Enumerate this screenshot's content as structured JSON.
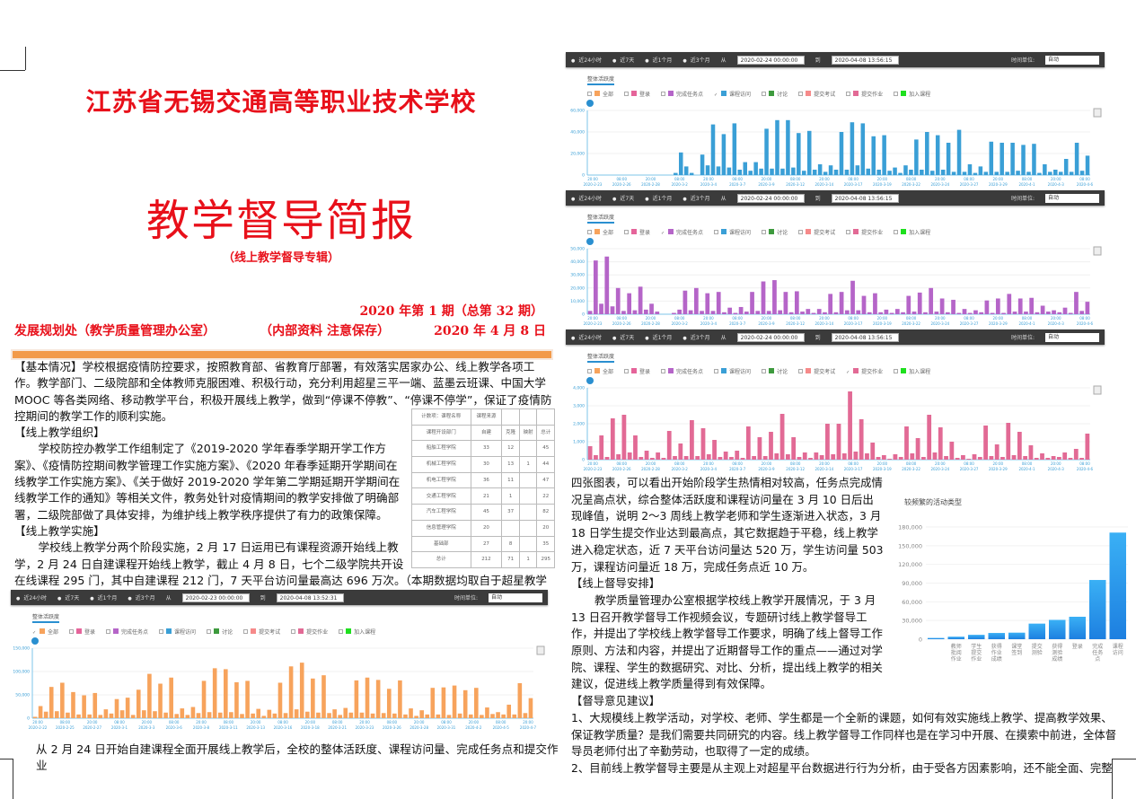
{
  "header": {
    "school": "江苏省无锡交通高等职业技术学校",
    "title": "教学督导简报",
    "subtitle": "（线上教学督导专辑）",
    "issue": "2020 年第 1 期（总第 32 期）",
    "dept": "发展规划处（教学质量管理办公室）",
    "confidential": "（内部资料  注意保存）",
    "date": "2020 年 4 月 8 日"
  },
  "left": {
    "p1": "【基本情况】学校根据疫情防控要求，按照教育部、省教育厅部署，有效落实居家办公、线上教学各项工作。教学部门、二级院部和全体教师克服困难、积极行动，充分利用超星三平一端、蓝墨云班课、中国大学 MOOC 等各类网络、移动教学平台，积极开展线上教学，做到“停课不停教”、“停课不停学”，保证了疫情防控期间的教学工作的顺利实施。",
    "h2": "【线上教学组织】",
    "p2": "学校防控办教学工作组制定了《2019-2020 学年春季学期开学工作方案》、《疫情防控期间教学管理工作实施方案》、《2020 年春季延期开学期间在线教学工作实施方案》、《关于做好 2019-2020 学年第二学期延期开学期间在线教学工作的通知》等相关文件，教务处针对疫情期间的教学安排做了明确部署，二级院部做了具体安排，为维护线上教学秩序提供了有力的政策保障。",
    "h3": "【线上教学实施】",
    "p3": "学校线上教学分两个阶段实施，2 月 17 日运用已有课程资源开始线上教学，2 月 24 日自建课程开始线上教学，截止 4 月 8 日，七个二级学院共开设在线课程 295 门，其中自建课程 212 门，7 天平台访问量最高达 696 万次。（本期数据均取自于超星教学平台课程）",
    "bottom": "从 2 月 24 日开始自建课程全面开展线上教学后，全校的整体活跃度、课程访问量、完成任务点和提交作业"
  },
  "table": {
    "top": [
      "计数项：课程名称",
      "课程来源",
      "",
      "",
      ""
    ],
    "header": [
      "课程开设部门",
      "自建",
      "克隆",
      "映射",
      "总计"
    ],
    "rows": [
      [
        "船舶工程学院",
        "33",
        "12",
        "",
        "45"
      ],
      [
        "机械工程学院",
        "30",
        "13",
        "1",
        "44"
      ],
      [
        "机电工程学院",
        "36",
        "11",
        "",
        "47"
      ],
      [
        "交通工程学院",
        "21",
        "1",
        "",
        "22"
      ],
      [
        "汽车工程学院",
        "45",
        "37",
        "",
        "82"
      ],
      [
        "信息管理学院",
        "20",
        "",
        "",
        "20"
      ],
      [
        "基础部",
        "27",
        "8",
        "",
        "35"
      ],
      [
        "总计",
        "212",
        "71",
        "1",
        "295"
      ]
    ]
  },
  "right": {
    "p1": "四张图表，可以看出开始阶段学生热情相对较高，任务点完成情况呈高点状，综合整体活跃度和课程访问量在 3 月 10 日后出现峰值，说明 2～3 周线上教学老师和学生逐渐进入状态，3 月 18 日学生提交作业达到最高点，其它数据趋于平稳，线上教学进入稳定状态，近 7 天平台访问量达 520 万，学生访问量 503 万，课程访问量近 18 万，完成任务点近 10 万。",
    "h2": "【线上督导安排】",
    "p2": "教学质量管理办公室根据学校线上教学开展情况，于 3 月 13 日召开教学督导工作视频会议，专题研讨线上教学督导工作，并提出了学校线上教学督导工作要求，明确了线上督导工作原则、方法和内容，并提出了近期督导工作的重点——通过对学院、课程、学生的数据研究、对比、分析，提出线上教学的相关建议，促进线上教学质量得到有效保障。",
    "h3": "【督导意见建议】",
    "p3": "1、大规模线上教学活动，对学校、老师、学生都是一个全新的课题，如何有效实施线上教学、提高教学效果、保证教学质量？是我们需要共同研究的内容。线上教学督导工作同样也是在学习中开展、在摸索中前进，全体督导员老师付出了辛勤劳动，也取得了一定的成绩。",
    "p4": "2、目前线上教学督导主要是从主观上对超星平台数据进行行为分析，由于受各方因素影响，还不能全面、完整"
  },
  "toolbar": {
    "options": [
      "近24小时",
      "近7天",
      "近1个月",
      "近3个月"
    ],
    "from_label": "从",
    "to_label": "到",
    "unit_label": "时间单位:",
    "unit_value": "自动",
    "tab": "整体活跃度",
    "legend": [
      {
        "label": "全部",
        "color": "#f7a35c"
      },
      {
        "label": "登录",
        "color": "#e5649a"
      },
      {
        "label": "完成任务点",
        "color": "#b565c8"
      },
      {
        "label": "课程访问",
        "color": "#3a9fd6"
      },
      {
        "label": "讨论",
        "color": "#3d9a3d"
      },
      {
        "label": "提交考试",
        "color": "#f68a8a"
      },
      {
        "label": "提交作业",
        "color": "#e26a95"
      },
      {
        "label": "加入课程",
        "color": "#1ee01e"
      }
    ]
  },
  "panels": [
    {
      "from": "2020-02-24 00:00:00",
      "to": "2020-04-08 13:56:15",
      "checked": "课程访问",
      "chart": 0
    },
    {
      "from": "2020-02-24 00:00:00",
      "to": "2020-04-08 13:56:15",
      "checked": "完成任务点",
      "chart": 1
    },
    {
      "from": "2020-02-24 00:00:00",
      "to": "2020-04-08 13:56:15",
      "checked": "提交作业",
      "chart": 2
    },
    {
      "from": "2020-02-23 00:00:00",
      "to": "2020-04-08 13:52:31",
      "checked": "全部",
      "chart": 3
    }
  ],
  "chart_data": [
    {
      "type": "bar",
      "series": [
        {
          "name": "课程访问"
        }
      ],
      "color": "#3a9fd6",
      "ylim": [
        0,
        60000
      ],
      "yticks": [
        0,
        20000,
        40000,
        60000
      ],
      "xticks": [
        "2020-2-23",
        "2020-2-26",
        "2020-2-28",
        "2020-3-2",
        "2020-3-4",
        "2020-3-7",
        "2020-3-9",
        "2020-3-12",
        "2020-3-14",
        "2020-3-17",
        "2020-3-19",
        "2020-3-22",
        "2020-3-24",
        "2020-3-27",
        "2020-3-29",
        "2020-4-1",
        "2020-4-3",
        "2020-4-6"
      ],
      "xtimes": [
        "20:00",
        "08:00"
      ],
      "values": [
        0,
        0,
        0,
        0,
        0,
        0,
        0,
        0,
        0,
        0,
        0,
        0,
        0,
        0,
        0,
        0,
        2000,
        21000,
        8000,
        2000,
        0,
        19000,
        9000,
        47000,
        8000,
        38000,
        7000,
        48000,
        5000,
        12000,
        4000,
        12000,
        6000,
        43000,
        6000,
        51000,
        6000,
        51000,
        7000,
        39000,
        4000,
        41000,
        5000,
        10000,
        3000,
        9000,
        5000,
        40000,
        5000,
        49000,
        9000,
        48000,
        6000,
        36000,
        5000,
        37000,
        4000,
        7000,
        2000,
        9000,
        5000,
        33000,
        5000,
        40000,
        4000,
        37000,
        5000,
        30000,
        3000,
        42000,
        3000,
        10000,
        2000,
        8000,
        3000,
        31000,
        3000,
        30000,
        3000,
        30000,
        4000,
        28000,
        3000,
        29000,
        2000,
        10000,
        3000,
        5000,
        3000,
        15000,
        3000,
        30000,
        4000,
        18000
      ]
    },
    {
      "type": "bar",
      "series": [
        {
          "name": "完成任务点"
        }
      ],
      "color": "#b565c8",
      "ylim": [
        0,
        50000
      ],
      "yticks": [
        0,
        10000,
        20000,
        30000,
        40000,
        50000
      ],
      "xticks": [
        "2020-2-23",
        "2020-2-26",
        "2020-2-28",
        "2020-3-2",
        "2020-3-4",
        "2020-3-7",
        "2020-3-9",
        "2020-3-12",
        "2020-3-14",
        "2020-3-17",
        "2020-3-19",
        "2020-3-22",
        "2020-3-24",
        "2020-3-27",
        "2020-3-29",
        "2020-4-1",
        "2020-4-3",
        "2020-4-6"
      ],
      "xtimes": [
        "20:00",
        "08:00"
      ],
      "values": [
        2500,
        41000,
        8000,
        44000,
        6000,
        20000,
        2500,
        16000,
        3000,
        21000,
        3500,
        8000,
        2000,
        0,
        0,
        1000,
        3500,
        18000,
        3000,
        20000,
        2500,
        16000,
        2500,
        17000,
        1500,
        5000,
        1000,
        5500,
        2000,
        17000,
        2500,
        25000,
        2500,
        26000,
        3000,
        17000,
        1500,
        17500,
        2000,
        4000,
        1000,
        4000,
        1500,
        15500,
        1500,
        17000,
        3000,
        25500,
        3000,
        14000,
        1500,
        16000,
        1500,
        3500,
        1000,
        4000,
        1500,
        14000,
        2000,
        16500,
        1500,
        20000,
        2000,
        12000,
        1500,
        11000,
        1000,
        4000,
        1000,
        3000,
        1500,
        10500,
        1000,
        12000,
        1000,
        15500,
        2000,
        12000,
        2000,
        12500,
        1500,
        6500,
        2000,
        3000,
        1500,
        5000,
        1000,
        17000,
        2500,
        9500
      ]
    },
    {
      "type": "bar",
      "series": [
        {
          "name": "提交作业"
        }
      ],
      "color": "#e26a95",
      "ylim": [
        0,
        4000
      ],
      "yticks": [
        0,
        1000,
        2000,
        3000,
        4000
      ],
      "xticks": [
        "2020-2-23",
        "2020-2-26",
        "2020-2-28",
        "2020-3-2",
        "2020-3-4",
        "2020-3-7",
        "2020-3-9",
        "2020-3-12",
        "2020-3-14",
        "2020-3-17",
        "2020-3-19",
        "2020-3-22",
        "2020-3-24",
        "2020-3-27",
        "2020-3-29",
        "2020-4-1",
        "2020-4-3",
        "2020-4-6"
      ],
      "xtimes": [
        "20:00",
        "08:00"
      ],
      "values": [
        750,
        250,
        1350,
        150,
        2300,
        300,
        2500,
        400,
        1350,
        150,
        500,
        100,
        400,
        100,
        1600,
        200,
        900,
        200,
        2200,
        200,
        1750,
        300,
        1100,
        150,
        450,
        150,
        500,
        100,
        1850,
        200,
        1250,
        200,
        1550,
        350,
        2550,
        300,
        1250,
        150,
        400,
        100,
        400,
        250,
        2000,
        300,
        2000,
        350,
        3800,
        450,
        2250,
        350,
        950,
        150,
        250,
        50,
        300,
        150,
        1850,
        350,
        1200,
        150,
        2500,
        400,
        1800,
        200,
        1000,
        100,
        250,
        50,
        300,
        150,
        1900,
        200,
        850,
        150,
        2050,
        250,
        1550,
        200,
        800,
        100,
        350,
        100,
        200,
        150,
        400,
        100,
        600,
        100,
        1450
      ]
    },
    {
      "type": "bar",
      "series": [
        {
          "name": "全部"
        }
      ],
      "color": "#f7a35c",
      "ylim": [
        0,
        150000
      ],
      "yticks": [
        0,
        50000,
        100000,
        150000
      ],
      "xticks": [
        "2020-2-22",
        "2020-2-25",
        "2020-2-27",
        "2020-3-1",
        "2020-3-3",
        "2020-3-6",
        "2020-3-8",
        "2020-3-11",
        "2020-3-13",
        "2020-3-16",
        "2020-3-18",
        "2020-3-21",
        "2020-3-23",
        "2020-3-26",
        "2020-3-28",
        "2020-3-31",
        "2020-4-2",
        "2020-4-5",
        "2020-4-7"
      ],
      "xtimes": [
        "20:00",
        "08:00"
      ],
      "values": [
        3000,
        26000,
        14000,
        67000,
        15000,
        76000,
        12000,
        56000,
        8000,
        49000,
        8000,
        54000,
        7000,
        19000,
        10000,
        41000,
        17000,
        44000,
        7000,
        61000,
        17000,
        95000,
        15000,
        74000,
        12000,
        87000,
        9000,
        21000,
        7000,
        24000,
        11000,
        80000,
        13000,
        107000,
        12000,
        105000,
        13000,
        77000,
        9000,
        80000,
        10000,
        20000,
        5000,
        18000,
        10000,
        76000,
        11000,
        111000,
        19000,
        119000,
        14000,
        85000,
        12000,
        92000,
        11000,
        19000,
        7000,
        22000,
        12000,
        81000,
        12000,
        87000,
        10000,
        82000,
        11000,
        63000,
        10000,
        81000,
        8000,
        21000,
        5000,
        17000,
        8000,
        65000,
        8000,
        66000,
        7000,
        70000,
        10000,
        60000,
        8000,
        65000,
        7000,
        23000,
        9000,
        13000,
        8000,
        29000,
        8000,
        75000,
        11000,
        43000
      ]
    },
    {
      "type": "bar",
      "title": "较频繁的活动类型",
      "color": "#2a9be8",
      "ylim": [
        0,
        180000
      ],
      "yticks": [
        0,
        30000,
        60000,
        90000,
        120000,
        150000,
        180000
      ],
      "categories": [
        "",
        "教师批阅作业",
        "学生提交作业",
        "获得作业成绩",
        "课堂签到",
        "提交测验",
        "获得测验成绩",
        "登录",
        "完成任务点",
        "课程访问"
      ],
      "values": [
        2000,
        4000,
        7000,
        10000,
        10500,
        25000,
        31000,
        36000,
        95000,
        171000
      ]
    }
  ]
}
